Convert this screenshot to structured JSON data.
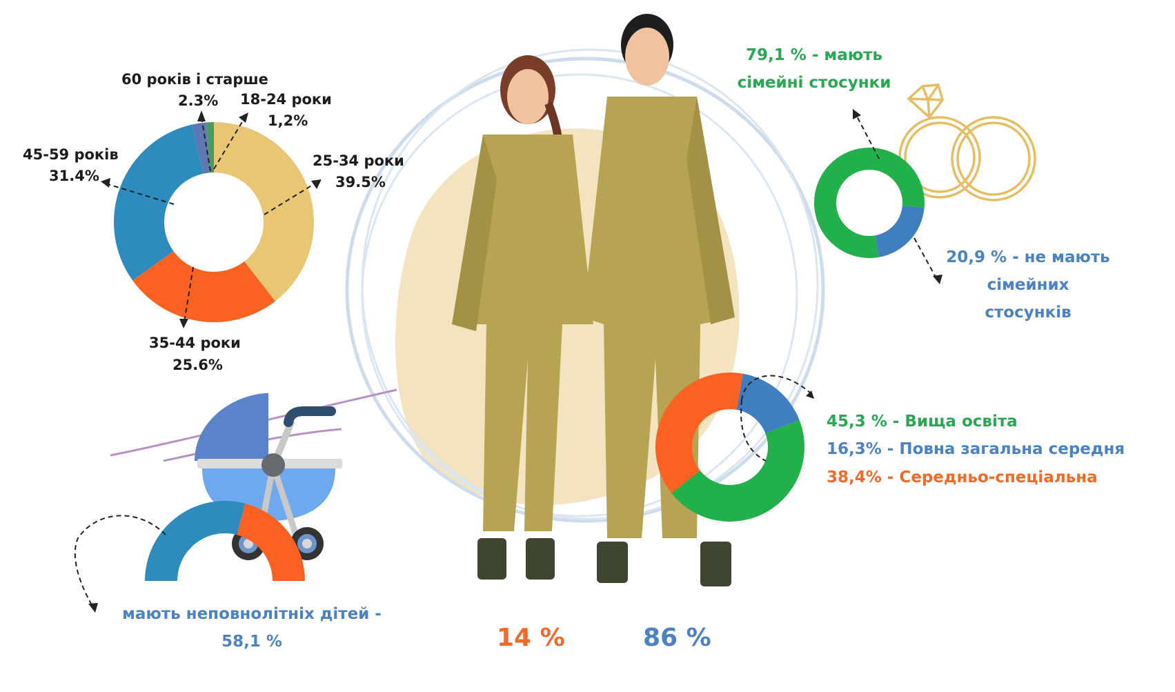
{
  "colors": {
    "green": "#22b04b",
    "blue": "#3f7fc0",
    "teal_blue": "#2e8bbd",
    "orange": "#fb6121",
    "yellow": "#e8c674",
    "purple": "#5f78b4",
    "dark_green": "#4d9860",
    "beige_bg": "#f1e2bd",
    "ring_line": "#c8d8ea",
    "gold": "#e6bd62"
  },
  "age": {
    "labels": [
      {
        "name": "60 років і старше",
        "value": "2.3%"
      },
      {
        "name": "18-24 роки",
        "value": "1,2%"
      },
      {
        "name": "45-59 років",
        "value": "31.4%"
      },
      {
        "name": "25-34 роки",
        "value": "39.5%"
      },
      {
        "name": "35-44 роки",
        "value": "25.6%"
      }
    ]
  },
  "family": {
    "has_label_line1": "79,1 % - мають",
    "has_label_line2": "сімейні стосунки",
    "not_label_line1": "20,9 % - не мають",
    "not_label_line2": "сімейних",
    "not_label_line3": "стосунків"
  },
  "education": {
    "items": [
      {
        "text": "45,3 % - Вища освіта"
      },
      {
        "text": "16,3% - Повна загальна середня"
      },
      {
        "text": "38,4% - Середньо-спеціальна"
      }
    ]
  },
  "children": {
    "label_line1": "мають неповнолітніх дітей -",
    "label_line2": "58,1 %"
  },
  "gender": {
    "female": "14 %",
    "male": "86 %"
  },
  "chart_data": [
    {
      "type": "pie",
      "title": "Age distribution",
      "variant": "donut",
      "categories": [
        "18-24 роки",
        "25-34 роки",
        "35-44 роки",
        "45-59 років",
        "60 років і старше"
      ],
      "values": [
        1.2,
        39.5,
        25.6,
        31.4,
        2.3
      ],
      "colors": [
        "#4d9860",
        "#e8c674",
        "#fb6121",
        "#2e8bbd",
        "#5f78b4"
      ],
      "order_clockwise_from_top": [
        "25-34 роки",
        "35-44 роки",
        "45-59 років",
        "60 років і старше",
        "18-24 роки"
      ]
    },
    {
      "type": "pie",
      "title": "Family relationships",
      "variant": "donut",
      "categories": [
        "мають сімейні стосунки",
        "не мають сімейних стосунків"
      ],
      "values": [
        79.1,
        20.9
      ],
      "colors": [
        "#22b04b",
        "#3f7fc0"
      ]
    },
    {
      "type": "pie",
      "title": "Education",
      "variant": "donut",
      "categories": [
        "Вища освіта",
        "Повна загальна середня",
        "Середньо-спеціальна"
      ],
      "values": [
        45.3,
        16.3,
        38.4
      ],
      "colors": [
        "#22b04b",
        "#3f7fc0",
        "#fb6121"
      ]
    },
    {
      "type": "pie",
      "title": "Have minor children",
      "variant": "half-donut",
      "categories": [
        "мають неповнолітніх дітей",
        "не мають"
      ],
      "values": [
        58.1,
        41.9
      ],
      "colors": [
        "#2e8bbd",
        "#fb6121"
      ]
    },
    {
      "type": "bar",
      "title": "Gender",
      "categories": [
        "жінки",
        "чоловіки"
      ],
      "values": [
        14,
        86
      ],
      "colors": [
        "#f26a2a",
        "#4a82c2"
      ]
    }
  ]
}
